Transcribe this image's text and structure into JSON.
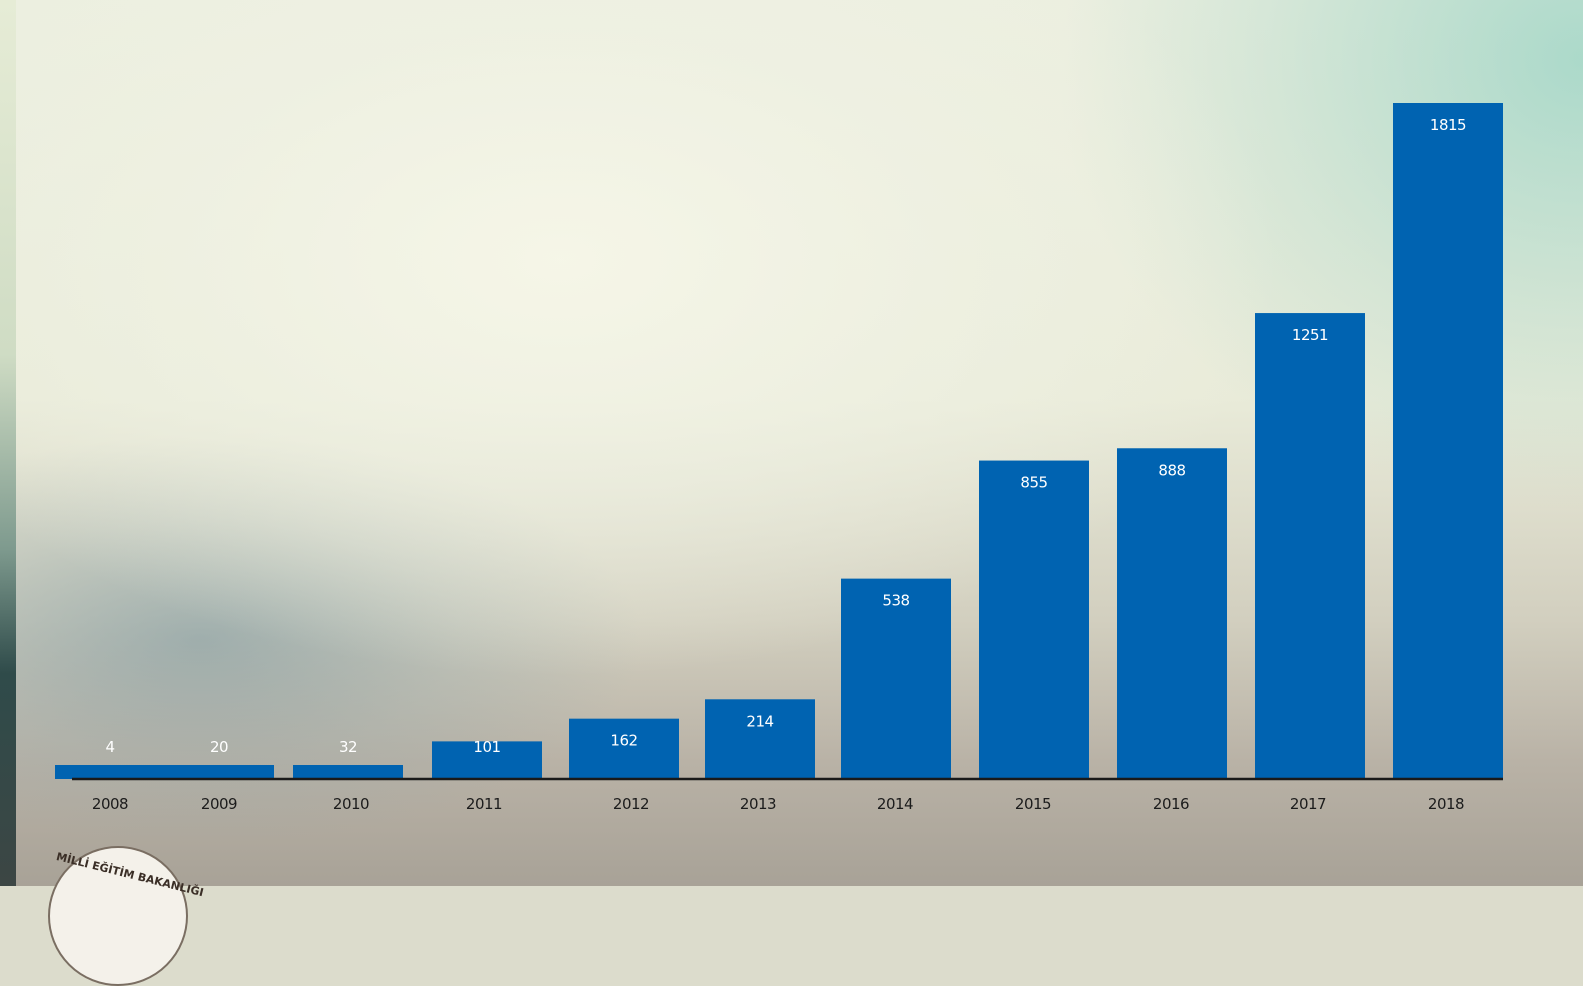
{
  "chart_data": {
    "type": "bar",
    "categories": [
      "2008",
      "2009",
      "2010",
      "2011",
      "2012",
      "2013",
      "2014",
      "2015",
      "2016",
      "2017",
      "2018"
    ],
    "values": [
      4,
      20,
      32,
      101,
      162,
      214,
      538,
      855,
      888,
      1251,
      1815
    ],
    "value_labels": [
      "4",
      "20",
      "32",
      "101",
      "162",
      "214",
      "538",
      "855",
      "888",
      "1251",
      "1815"
    ],
    "title": "",
    "xlabel": "",
    "ylabel": "",
    "ylim": [
      0,
      1815
    ],
    "grid": false,
    "legend": "none",
    "bar_color": "#0063b1",
    "label_color": "#ffffff"
  },
  "logo": {
    "text": "MİLLİ EĞİTİM BAKANLIĞI",
    "icon": "ministry-seal-icon"
  }
}
